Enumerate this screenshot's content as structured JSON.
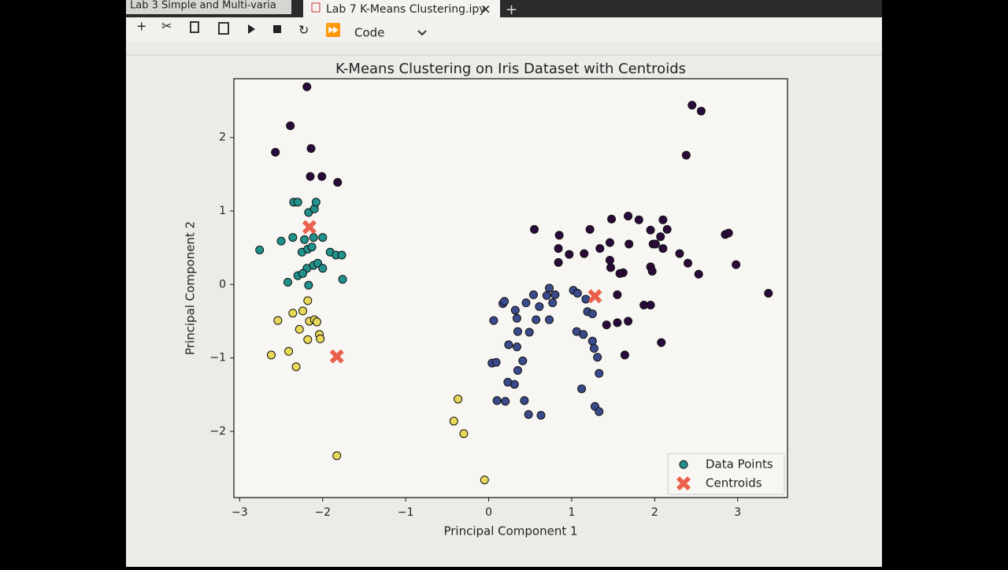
{
  "tabs": [
    "Lab 3 Simple and Multi-varia",
    "Lab 7 K-Means Clustering.ipy"
  ],
  "toolbar": {
    "cell_type": "Code"
  },
  "chart_data": {
    "type": "scatter",
    "title": "K-Means Clustering on Iris Dataset with Centroids",
    "x_label": "Principal Component 1",
    "y_label": "Principal Component 2",
    "xlim": [
      -3.07,
      3.6
    ],
    "ylim": [
      -2.9,
      2.8
    ],
    "xticks": [
      {
        "value": -3,
        "label": "−3"
      },
      {
        "value": -2,
        "label": "−2"
      },
      {
        "value": -1,
        "label": "−1"
      },
      0,
      1,
      2,
      3
    ],
    "yticks": [
      {
        "value": -2,
        "label": "−2"
      },
      {
        "value": -1,
        "label": "−1"
      },
      0,
      1,
      2
    ],
    "legend": "lower right",
    "series": [
      {
        "name": "Data Points",
        "color": "#21918c",
        "marker": "o",
        "x": [
          -2.19,
          -2.39,
          -2.57,
          -2.14,
          -2.15,
          -2.01,
          -1.82,
          2.45,
          2.56,
          2.38,
          0.55,
          0.85,
          1.22,
          1.48,
          1.68,
          1.81,
          1.95,
          2.1,
          2.15,
          2.07,
          1.98,
          2.01,
          2.1,
          2.3,
          2.4,
          2.53,
          2.85,
          2.89,
          2.98,
          3.37,
          1.95,
          1.97,
          1.46,
          1.69,
          1.34,
          1.15,
          0.97,
          0.84,
          0.84,
          1.46,
          1.47,
          1.62,
          1.58,
          1.55,
          1.87,
          1.95,
          1.68,
          1.55,
          1.42,
          2.08,
          1.64,
          0.06,
          0.17,
          0.19,
          0.32,
          0.34,
          0.45,
          0.54,
          0.7,
          0.73,
          0.8,
          0.77,
          0.61,
          0.57,
          0.73,
          1.02,
          1.07,
          1.17,
          1.19,
          1.25,
          0.35,
          0.49,
          0.24,
          0.34,
          0.41,
          0.35,
          0.31,
          0.23,
          0.04,
          0.09,
          0.1,
          0.2,
          0.43,
          0.48,
          0.63,
          1.06,
          1.14,
          1.25,
          1.27,
          1.31,
          1.33,
          1.12,
          1.28,
          1.33,
          -2.76,
          -2.5,
          -2.35,
          -2.3,
          -2.36,
          -2.17,
          -2.1,
          -2.08,
          -2.22,
          -2.11,
          -2.0,
          -2.25,
          -2.18,
          -2.13,
          -1.91,
          -1.84,
          -1.77,
          -2.19,
          -2.11,
          -2.06,
          -2.0,
          -2.3,
          -2.24,
          -2.42,
          -2.17,
          -1.76,
          -2.18,
          -2.36,
          -2.24,
          -2.54,
          -2.16,
          -2.1,
          -2.07,
          -2.28,
          -2.04,
          -2.03,
          -2.18,
          -2.41,
          -2.62,
          -2.32,
          -1.83,
          -0.37,
          -0.42,
          -0.3,
          -0.05
        ],
        "values": [
          2.69,
          2.16,
          1.8,
          1.85,
          1.47,
          1.47,
          1.39,
          2.44,
          2.36,
          1.76,
          0.75,
          0.67,
          0.75,
          0.89,
          0.93,
          0.88,
          0.74,
          0.88,
          0.75,
          0.65,
          0.55,
          0.55,
          0.49,
          0.42,
          0.29,
          0.14,
          0.68,
          0.7,
          0.27,
          -0.12,
          0.24,
          0.18,
          0.57,
          0.55,
          0.49,
          0.42,
          0.41,
          0.49,
          0.3,
          0.33,
          0.23,
          0.16,
          0.15,
          -0.14,
          -0.28,
          -0.28,
          -0.5,
          -0.52,
          -0.55,
          -0.79,
          -0.96,
          -0.49,
          -0.26,
          -0.23,
          -0.35,
          -0.46,
          -0.25,
          -0.14,
          -0.15,
          -0.05,
          -0.14,
          -0.25,
          -0.3,
          -0.48,
          -0.48,
          -0.08,
          -0.12,
          -0.2,
          -0.37,
          -0.4,
          -0.64,
          -0.65,
          -0.82,
          -0.85,
          -1.04,
          -1.17,
          -1.36,
          -1.33,
          -1.07,
          -1.06,
          -1.58,
          -1.59,
          -1.58,
          -1.77,
          -1.78,
          -0.64,
          -0.68,
          -0.77,
          -0.87,
          -0.99,
          -1.21,
          -1.42,
          -1.66,
          -1.73,
          0.47,
          0.59,
          1.12,
          1.12,
          0.64,
          0.98,
          1.03,
          1.12,
          0.61,
          0.64,
          0.64,
          0.44,
          0.48,
          0.51,
          0.44,
          0.4,
          0.4,
          0.22,
          0.26,
          0.29,
          0.22,
          0.12,
          0.15,
          0.03,
          -0.01,
          0.07,
          -0.22,
          -0.39,
          -0.36,
          -0.49,
          -0.5,
          -0.48,
          -0.51,
          -0.61,
          -0.68,
          -0.74,
          -0.75,
          -0.91,
          -0.96,
          -1.12,
          -2.33,
          -1.56,
          -1.86,
          -2.03,
          -2.66
        ],
        "colors": [
          "#2a0a3a",
          "#2a0a3a",
          "#2a0a3a",
          "#2a0a3a",
          "#2a0a3a",
          "#2a0a3a",
          "#2a0a3a",
          "#2a0a3a",
          "#2a0a3a",
          "#2a0a3a",
          "#2a0a3a",
          "#2a0a3a",
          "#2a0a3a",
          "#2a0a3a",
          "#2a0a3a",
          "#2a0a3a",
          "#2a0a3a",
          "#2a0a3a",
          "#2a0a3a",
          "#2a0a3a",
          "#2a0a3a",
          "#2a0a3a",
          "#2a0a3a",
          "#2a0a3a",
          "#2a0a3a",
          "#2a0a3a",
          "#2a0a3a",
          "#2a0a3a",
          "#2a0a3a",
          "#2a0a3a",
          "#2a0a3a",
          "#2a0a3a",
          "#2a0a3a",
          "#2a0a3a",
          "#2a0a3a",
          "#2a0a3a",
          "#2a0a3a",
          "#2a0a3a",
          "#2a0a3a",
          "#2a0a3a",
          "#2a0a3a",
          "#2a0a3a",
          "#2a0a3a",
          "#2a0a3a",
          "#2a0a3a",
          "#2a0a3a",
          "#2a0a3a",
          "#2a0a3a",
          "#2a0a3a",
          "#2a0a3a",
          "#2a0a3a",
          "#3b4a8b",
          "#3b4a8b",
          "#3b4a8b",
          "#3b4a8b",
          "#3b4a8b",
          "#3b4a8b",
          "#3b4a8b",
          "#3b4a8b",
          "#3b4a8b",
          "#3b4a8b",
          "#3b4a8b",
          "#3b4a8b",
          "#3b4a8b",
          "#3b4a8b",
          "#3b4a8b",
          "#3b4a8b",
          "#3b4a8b",
          "#3b4a8b",
          "#3b4a8b",
          "#3b4a8b",
          "#3b4a8b",
          "#3b4a8b",
          "#3b4a8b",
          "#3b4a8b",
          "#3b4a8b",
          "#3b4a8b",
          "#3b4a8b",
          "#3b4a8b",
          "#3b4a8b",
          "#3b4a8b",
          "#3b4a8b",
          "#3b4a8b",
          "#3b4a8b",
          "#3b4a8b",
          "#3b4a8b",
          "#3b4a8b",
          "#3b4a8b",
          "#3b4a8b",
          "#3b4a8b",
          "#3b4a8b",
          "#3b4a8b",
          "#3b4a8b",
          "#3b4a8b",
          "#21918c",
          "#21918c",
          "#21918c",
          "#21918c",
          "#21918c",
          "#21918c",
          "#21918c",
          "#21918c",
          "#21918c",
          "#21918c",
          "#21918c",
          "#21918c",
          "#21918c",
          "#21918c",
          "#21918c",
          "#21918c",
          "#21918c",
          "#21918c",
          "#21918c",
          "#21918c",
          "#21918c",
          "#21918c",
          "#21918c",
          "#21918c",
          "#21918c",
          "#21918c",
          "#e8d85a",
          "#e8d85a",
          "#e8d85a",
          "#e8d85a",
          "#e8d85a",
          "#e8d85a",
          "#e8d85a",
          "#e8d85a",
          "#e8d85a",
          "#e8d85a",
          "#e8d85a",
          "#e8d85a",
          "#e8d85a",
          "#e8d85a",
          "#e8d85a",
          "#e8d85a",
          "#e8d85a",
          "#e8d85a",
          "#e8d85a"
        ]
      },
      {
        "name": "Centroids",
        "color": "#e8503a",
        "marker": "X",
        "x": [
          -2.16,
          -1.83,
          1.28
        ],
        "values": [
          0.78,
          -0.98,
          -0.16
        ]
      }
    ]
  }
}
